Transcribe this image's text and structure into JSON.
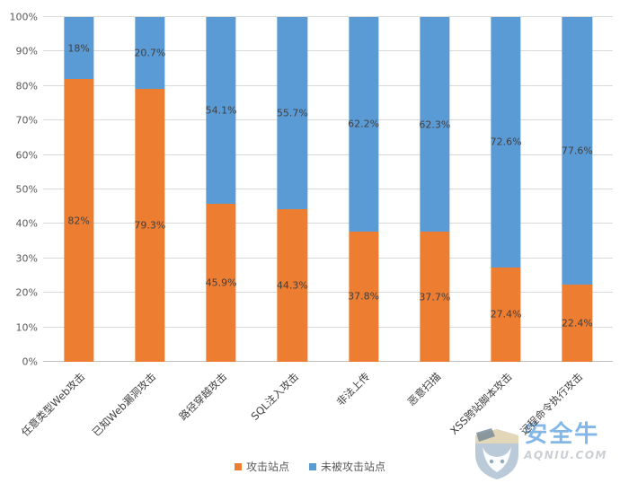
{
  "chart_data": {
    "type": "bar",
    "stacked": true,
    "percent": true,
    "title": "",
    "categories": [
      "任意类型Web攻击",
      "已知Web漏洞攻击",
      "路径穿越攻击",
      "SQL注入攻击",
      "非法上传",
      "恶意扫描",
      "XSS跨站脚本攻击",
      "远程命令执行攻击"
    ],
    "series": [
      {
        "name": "攻击站点",
        "color": "#ED7D31",
        "values": [
          82,
          79.3,
          45.9,
          44.3,
          37.8,
          37.7,
          27.4,
          22.4
        ],
        "labels": [
          "82%",
          "79.3%",
          "45.9%",
          "44.3%",
          "37.8%",
          "37.7%",
          "27.4%",
          "22.4%"
        ]
      },
      {
        "name": "未被攻击站点",
        "color": "#5B9BD5",
        "values": [
          18,
          20.7,
          54.1,
          55.7,
          62.2,
          62.3,
          72.6,
          77.6
        ],
        "labels": [
          "18%",
          "20.7%",
          "54.1%",
          "55.7%",
          "62.2%",
          "62.3%",
          "72.6%",
          "77.6%"
        ]
      }
    ],
    "y_axis": {
      "min": 0,
      "max": 100,
      "step": 10,
      "ticks": [
        "0%",
        "10%",
        "20%",
        "30%",
        "40%",
        "50%",
        "60%",
        "70%",
        "80%",
        "90%",
        "100%"
      ],
      "grid": true
    },
    "legend_position": "bottom"
  },
  "colors": {
    "attacked": "#ED7D31",
    "not_attacked": "#5B9BD5",
    "gridline": "#D9D9D9",
    "axis_text": "#595959",
    "label_text": "#404040"
  },
  "watermark": {
    "brand": "安全牛",
    "domain": "AQNIU.COM"
  }
}
